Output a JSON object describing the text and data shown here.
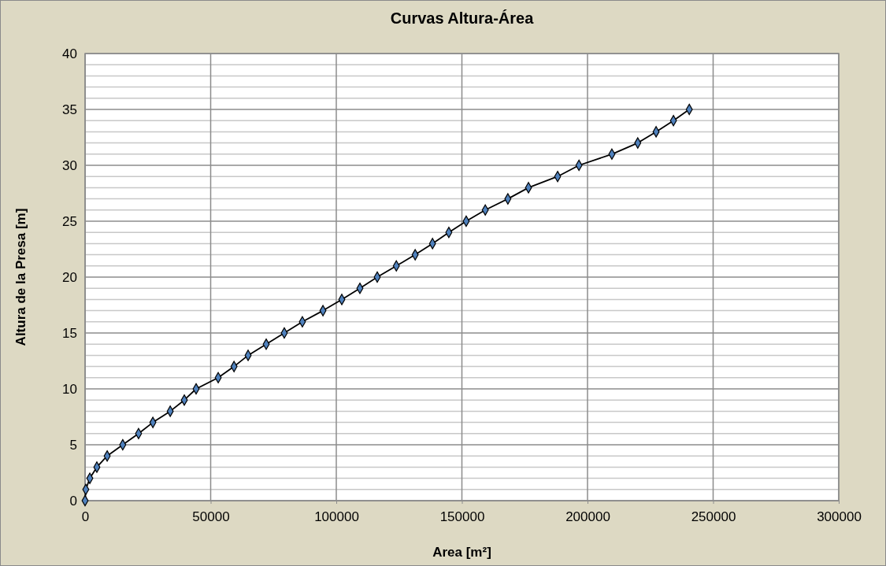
{
  "chart_data": {
    "type": "line",
    "title": "Curvas Altura-Área",
    "xlabel": "Area [m²]",
    "ylabel": "Altura de la Presa [m]",
    "x": [
      0,
      300,
      1900,
      4700,
      8800,
      15000,
      21300,
      27000,
      33900,
      39500,
      44200,
      53000,
      59300,
      64900,
      72100,
      79300,
      86500,
      94700,
      102200,
      109400,
      116300,
      123900,
      131400,
      138300,
      144800,
      151700,
      159300,
      168300,
      176500,
      188100,
      196600,
      209700,
      220000,
      227300,
      234200,
      240500
    ],
    "series": [
      {
        "color": "#4f81bd",
        "values": [
          0,
          1,
          2,
          3,
          4,
          5,
          6,
          7,
          8,
          9,
          10,
          11,
          12,
          13,
          14,
          15,
          16,
          17,
          18,
          19,
          20,
          21,
          22,
          23,
          24,
          25,
          26,
          27,
          28,
          29,
          30,
          31,
          32,
          33,
          34,
          35
        ]
      }
    ],
    "xlim": [
      0,
      300000
    ],
    "xticks": [
      0,
      50000,
      100000,
      150000,
      200000,
      250000,
      300000
    ],
    "ylim": [
      0,
      40
    ],
    "yticks": [
      0,
      {
        "value": 1,
        "label": null
      },
      {
        "value": 2,
        "label": null
      },
      {
        "value": 3,
        "label": null
      },
      {
        "value": 4,
        "label": null
      },
      5,
      {
        "value": 6,
        "label": null
      },
      {
        "value": 7,
        "label": null
      },
      {
        "value": 8,
        "label": null
      },
      {
        "value": 9,
        "label": null
      },
      10,
      {
        "value": 11,
        "label": null
      },
      {
        "value": 12,
        "label": null
      },
      {
        "value": 13,
        "label": null
      },
      {
        "value": 14,
        "label": null
      },
      15,
      {
        "value": 16,
        "label": null
      },
      {
        "value": 17,
        "label": null
      },
      {
        "value": 18,
        "label": null
      },
      {
        "value": 19,
        "label": null
      },
      20,
      {
        "value": 21,
        "label": null
      },
      {
        "value": 22,
        "label": null
      },
      {
        "value": 23,
        "label": null
      },
      {
        "value": 24,
        "label": null
      },
      25,
      {
        "value": 26,
        "label": null
      },
      {
        "value": 27,
        "label": null
      },
      {
        "value": 28,
        "label": null
      },
      {
        "value": 29,
        "label": null
      },
      30,
      {
        "value": 31,
        "label": null
      },
      {
        "value": 32,
        "label": null
      },
      {
        "value": 33,
        "label": null
      },
      {
        "value": 34,
        "label": null
      },
      35,
      {
        "value": 36,
        "label": null
      },
      {
        "value": 37,
        "label": null
      },
      {
        "value": 38,
        "label": null
      },
      {
        "value": 39,
        "label": null
      },
      40
    ],
    "grid": true,
    "marker": "diamond",
    "line_style": "solid"
  }
}
